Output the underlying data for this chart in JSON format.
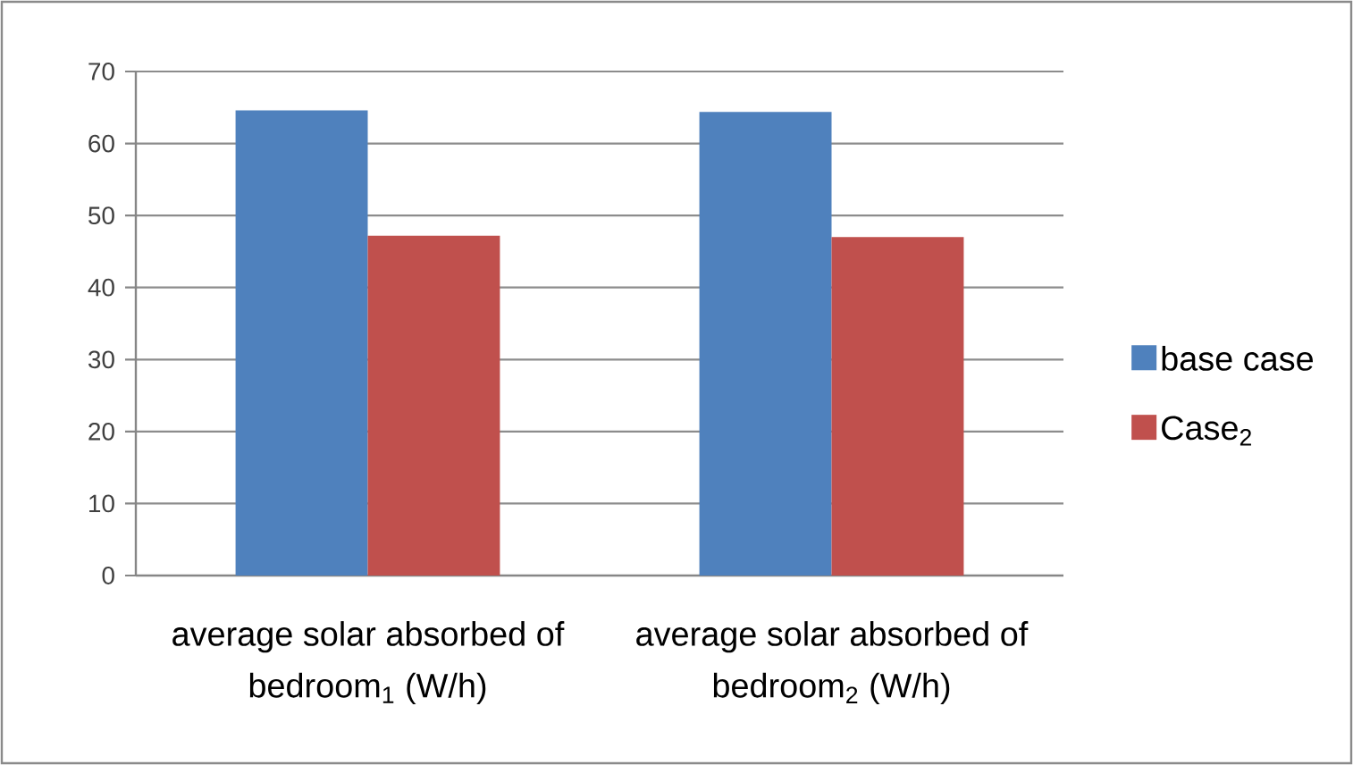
{
  "chart_data": {
    "type": "bar",
    "categories": [
      "average solar absorbed of bedroom$_{1}$ (W/h)",
      "average solar absorbed of bedroom$_{2}$ (W/h)"
    ],
    "series": [
      {
        "name": "base case",
        "color": "#4f81bd",
        "values": [
          64.6,
          64.4
        ]
      },
      {
        "name": "Case$_{2}$",
        "color": "#c0504d",
        "values": [
          47.2,
          47.0
        ]
      }
    ],
    "ylim": [
      0,
      70
    ],
    "yticks": [
      0,
      10,
      20,
      30,
      40,
      50,
      60,
      70
    ],
    "grid": "y",
    "legend": "right"
  }
}
